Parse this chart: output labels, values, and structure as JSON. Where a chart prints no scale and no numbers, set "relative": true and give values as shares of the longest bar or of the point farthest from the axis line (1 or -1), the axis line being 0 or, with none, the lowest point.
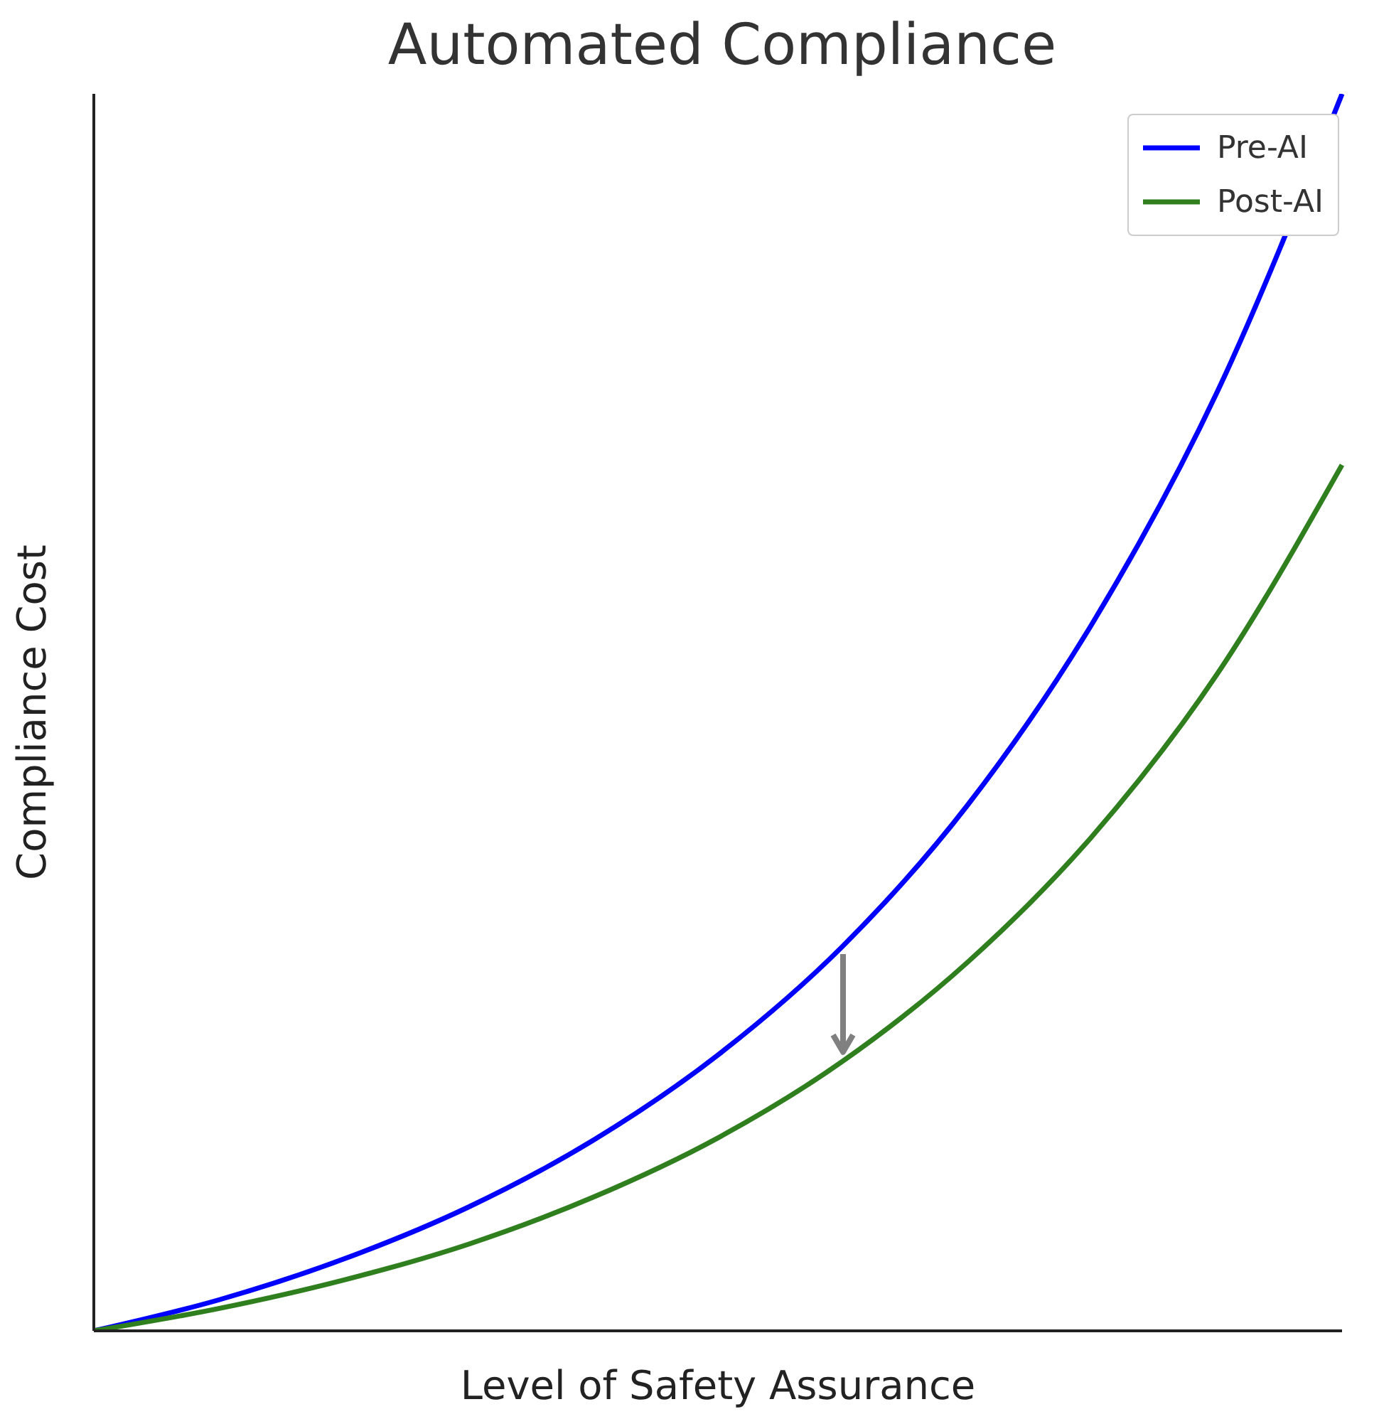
{
  "chart_data": {
    "type": "line",
    "title": "Automated Compliance",
    "xlabel": "Level of Safety Assurance",
    "ylabel": "Compliance Cost",
    "relative": true,
    "categories": [
      null,
      null,
      null,
      null,
      null,
      null,
      null,
      null,
      null,
      null,
      null
    ],
    "series": [
      {
        "name": "Pre-AI",
        "color": "#0000ff",
        "values": [
          0,
          0.025,
          0.058,
          0.1,
          0.154,
          0.223,
          0.311,
          0.425,
          0.572,
          0.759,
          1
        ]
      },
      {
        "name": "Post-AI",
        "color": "#2f7f1f",
        "values": [
          0,
          0.018,
          0.041,
          0.07,
          0.108,
          0.156,
          0.218,
          0.298,
          0.4,
          0.531,
          0.7
        ]
      }
    ],
    "legend": "top right",
    "marker": "none",
    "line_style": "solid"
  }
}
